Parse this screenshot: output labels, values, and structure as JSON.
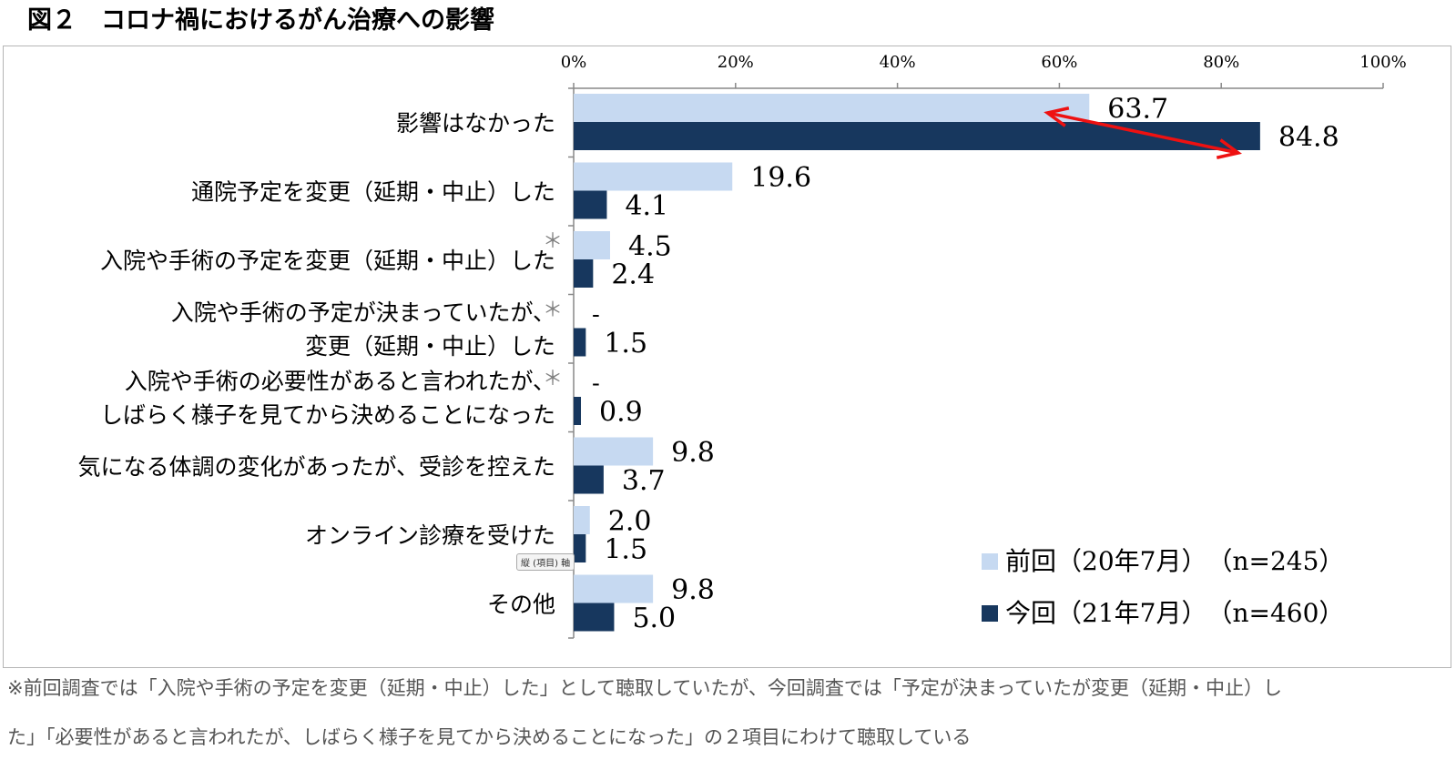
{
  "figure_title": "図２　コロナ禍におけるがん治療への影響",
  "chart_data": {
    "type": "bar",
    "orientation": "horizontal",
    "xlim": [
      0,
      100
    ],
    "x_ticks": [
      "0%",
      "20%",
      "40%",
      "60%",
      "80%",
      "100%"
    ],
    "categories": [
      [
        "影響はなかった"
      ],
      [
        "通院予定を変更（延期・中止）した"
      ],
      [
        "入院や手術の予定を変更（延期・中止）した"
      ],
      [
        "入院や手術の予定が決まっていたが、",
        "変更（延期・中止）した"
      ],
      [
        "入院や手術の必要性があると言われたが、",
        "しばらく様子を見てから決めることになった"
      ],
      [
        "気になる体調の変化があったが、受診を控えた"
      ],
      [
        "オンライン診療を受けた"
      ],
      [
        "その他"
      ]
    ],
    "asterisk_marks": [
      "",
      "",
      "＊",
      "＊",
      "＊",
      "",
      "",
      ""
    ],
    "series": [
      {
        "name": "前回（20年7月）　（n=245）",
        "color": "#c6d9f1",
        "values": [
          63.7,
          19.6,
          4.5,
          null,
          null,
          9.8,
          2.0,
          9.8
        ],
        "labels": [
          "63.7",
          "19.6",
          "4.5",
          "-",
          "-",
          "9.8",
          "2.0",
          "9.8"
        ]
      },
      {
        "name": "今回（21年7月）　（n=460）",
        "color": "#17375e",
        "values": [
          84.8,
          4.1,
          2.4,
          1.5,
          0.9,
          3.7,
          1.5,
          5.0
        ],
        "labels": [
          "84.8",
          "4.1",
          "2.4",
          "1.5",
          "0.9",
          "3.7",
          "1.5",
          "5.0"
        ]
      }
    ],
    "annotation": "red double-headed arrow between 63.7 and 84.8",
    "annotation_color": "#ee1111"
  },
  "axis_tag": "縦 (項目) 軸",
  "footnote": [
    "※前回調査では「入院や手術の予定を変更（延期・中止）した」として聴取していたが、今回調査では「予定が決まっていたが変更（延期・中止）し",
    "た」「必要性があると言われたが、しばらく様子を見てから決めることになった」の２項目にわけて聴取している"
  ]
}
